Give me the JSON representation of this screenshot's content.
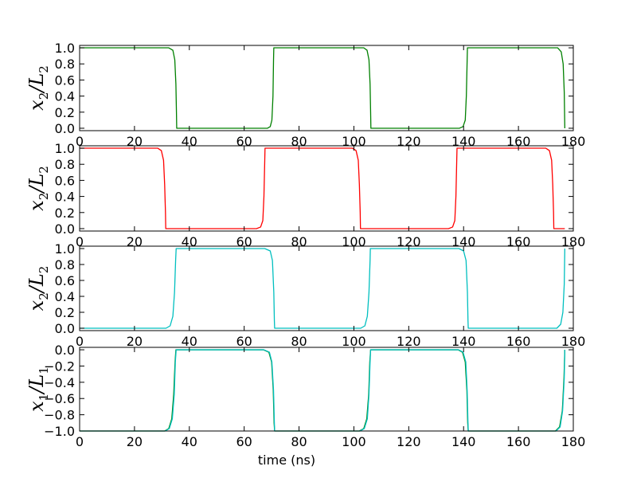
{
  "colors": {
    "axes": "#000000",
    "background": "#ffffff"
  },
  "chart_data": [
    {
      "type": "line",
      "ylabel": {
        "var": "x",
        "var_sub": "2",
        "slash": "/",
        "den": "L",
        "den_sub": "2"
      },
      "xlabel": "",
      "xlim": [
        0,
        180
      ],
      "ylim": [
        -0.03,
        1.03
      ],
      "xticks": [
        "0",
        "20",
        "40",
        "60",
        "80",
        "100",
        "120",
        "140",
        "160",
        "180"
      ],
      "yticks": [
        "0.0",
        "0.2",
        "0.4",
        "0.6",
        "0.8",
        "1.0"
      ],
      "ytick_values": [
        0.0,
        0.2,
        0.4,
        0.6,
        0.8,
        1.0
      ],
      "grid": false,
      "series": [
        {
          "color": "#008000",
          "x": [
            0,
            32.5,
            34.0,
            34.7,
            35.1,
            35.3,
            35.4,
            68.5,
            69.5,
            70.1,
            70.5,
            70.7,
            70.8,
            103.6,
            104.8,
            105.5,
            105.9,
            106.1,
            106.2,
            138.5,
            139.8,
            140.6,
            141.0,
            141.3,
            141.4,
            174.3,
            175.6,
            176.3,
            176.7,
            176.9
          ],
          "y": [
            1.0,
            1.0,
            0.97,
            0.85,
            0.55,
            0.2,
            0.0,
            0.0,
            0.02,
            0.1,
            0.4,
            0.85,
            1.0,
            1.0,
            0.97,
            0.85,
            0.55,
            0.2,
            0.0,
            0.0,
            0.02,
            0.1,
            0.4,
            0.85,
            1.0,
            1.0,
            0.95,
            0.8,
            0.45,
            0.0
          ]
        }
      ]
    },
    {
      "type": "line",
      "ylabel": {
        "var": "x",
        "var_sub": "2",
        "slash": "/",
        "den": "L",
        "den_sub": "2"
      },
      "xlabel": "",
      "xlim": [
        0,
        180
      ],
      "ylim": [
        -0.03,
        1.03
      ],
      "xticks": [
        "0",
        "20",
        "40",
        "60",
        "80",
        "100",
        "120",
        "140",
        "160",
        "180"
      ],
      "yticks": [
        "0.0",
        "0.2",
        "0.4",
        "0.6",
        "0.8",
        "1.0"
      ],
      "ytick_values": [
        0.0,
        0.2,
        0.4,
        0.6,
        0.8,
        1.0
      ],
      "grid": false,
      "series": [
        {
          "color": "#ff0000",
          "x": [
            0,
            28.5,
            29.8,
            30.6,
            31.0,
            31.3,
            31.4,
            64.5,
            66.0,
            66.8,
            67.2,
            67.5,
            67.6,
            99.5,
            100.8,
            101.6,
            102.0,
            102.3,
            102.4,
            134.5,
            136.0,
            136.8,
            137.2,
            137.5,
            137.6,
            170.0,
            171.3,
            172.1,
            172.5,
            172.8,
            172.9,
            176.9
          ],
          "y": [
            1.0,
            1.0,
            0.97,
            0.85,
            0.55,
            0.2,
            0.0,
            0.0,
            0.02,
            0.1,
            0.4,
            0.85,
            1.0,
            1.0,
            0.97,
            0.85,
            0.55,
            0.2,
            0.0,
            0.0,
            0.02,
            0.1,
            0.4,
            0.85,
            1.0,
            1.0,
            0.97,
            0.85,
            0.55,
            0.2,
            0.0,
            0.0
          ]
        }
      ]
    },
    {
      "type": "line",
      "ylabel": {
        "var": "x",
        "var_sub": "2",
        "slash": "/",
        "den": "L",
        "den_sub": "2"
      },
      "xlabel": "",
      "xlim": [
        0,
        180
      ],
      "ylim": [
        -0.03,
        1.03
      ],
      "xticks": [
        "0",
        "20",
        "40",
        "60",
        "80",
        "100",
        "120",
        "140",
        "160",
        "180"
      ],
      "yticks": [
        "0.0",
        "0.2",
        "0.4",
        "0.6",
        "0.8",
        "1.0"
      ],
      "ytick_values": [
        0.0,
        0.2,
        0.4,
        0.6,
        0.8,
        1.0
      ],
      "grid": false,
      "series": [
        {
          "color": "#00bfbf",
          "x": [
            0,
            31.5,
            33.0,
            34.0,
            34.6,
            35.0,
            35.2,
            67.5,
            69.5,
            70.3,
            70.8,
            71.0,
            71.1,
            102.5,
            104.0,
            104.9,
            105.5,
            105.9,
            106.0,
            138.3,
            140.0,
            140.9,
            141.4,
            141.6,
            141.7,
            174.0,
            175.4,
            176.2,
            176.7,
            176.9
          ],
          "y": [
            0.0,
            0.0,
            0.03,
            0.15,
            0.45,
            0.85,
            1.0,
            1.0,
            0.97,
            0.85,
            0.45,
            0.1,
            0.0,
            0.0,
            0.03,
            0.15,
            0.45,
            0.85,
            1.0,
            1.0,
            0.97,
            0.85,
            0.45,
            0.1,
            0.0,
            0.0,
            0.05,
            0.2,
            0.55,
            1.0
          ]
        }
      ]
    },
    {
      "type": "line",
      "ylabel": {
        "var": "x",
        "var_sub": "1",
        "slash": "/",
        "den": "L",
        "den_sub": "1"
      },
      "xlabel": "time (ns)",
      "xlim": [
        0,
        180
      ],
      "ylim": [
        -1.0,
        0.03
      ],
      "xticks": [
        "0",
        "20",
        "40",
        "60",
        "80",
        "100",
        "120",
        "140",
        "160",
        "180"
      ],
      "yticks": [
        "−1.0",
        "−0.8",
        "−0.6",
        "−0.4",
        "−0.2",
        "0.0"
      ],
      "ytick_values": [
        -1.0,
        -0.8,
        -0.6,
        -0.4,
        -0.2,
        0.0
      ],
      "grid": false,
      "series": [
        {
          "color": "#008000",
          "x": [
            0,
            31.0,
            32.5,
            33.6,
            34.3,
            34.8,
            35.1,
            67.0,
            69.0,
            70.0,
            70.6,
            70.9,
            71.1,
            102.0,
            103.6,
            104.7,
            105.4,
            105.8,
            106.1,
            138.0,
            139.6,
            140.6,
            141.2,
            141.5,
            141.7,
            173.5,
            175.0,
            176.0,
            176.6,
            176.9
          ],
          "y": [
            -1.0,
            -1.0,
            -0.97,
            -0.85,
            -0.55,
            -0.15,
            0.0,
            0.0,
            -0.03,
            -0.15,
            -0.5,
            -0.9,
            -1.0,
            -1.0,
            -0.97,
            -0.85,
            -0.55,
            -0.15,
            0.0,
            0.0,
            -0.03,
            -0.15,
            -0.5,
            -0.9,
            -1.0,
            -1.0,
            -0.95,
            -0.75,
            -0.35,
            0.0
          ]
        },
        {
          "color": "#00bfbf",
          "x": [
            0,
            31.2,
            32.7,
            33.8,
            34.5,
            34.9,
            35.2,
            67.2,
            69.2,
            70.1,
            70.7,
            71.0,
            71.1,
            102.2,
            103.8,
            104.9,
            105.5,
            105.9,
            106.1,
            138.2,
            139.8,
            140.8,
            141.3,
            141.6,
            141.7,
            173.7,
            175.2,
            176.1,
            176.7,
            176.9
          ],
          "y": [
            -1.0,
            -1.0,
            -0.97,
            -0.85,
            -0.55,
            -0.15,
            0.0,
            0.0,
            -0.03,
            -0.15,
            -0.5,
            -0.9,
            -1.0,
            -1.0,
            -0.97,
            -0.85,
            -0.55,
            -0.15,
            0.0,
            0.0,
            -0.03,
            -0.15,
            -0.5,
            -0.9,
            -1.0,
            -1.0,
            -0.95,
            -0.75,
            -0.35,
            0.0
          ]
        }
      ]
    }
  ]
}
